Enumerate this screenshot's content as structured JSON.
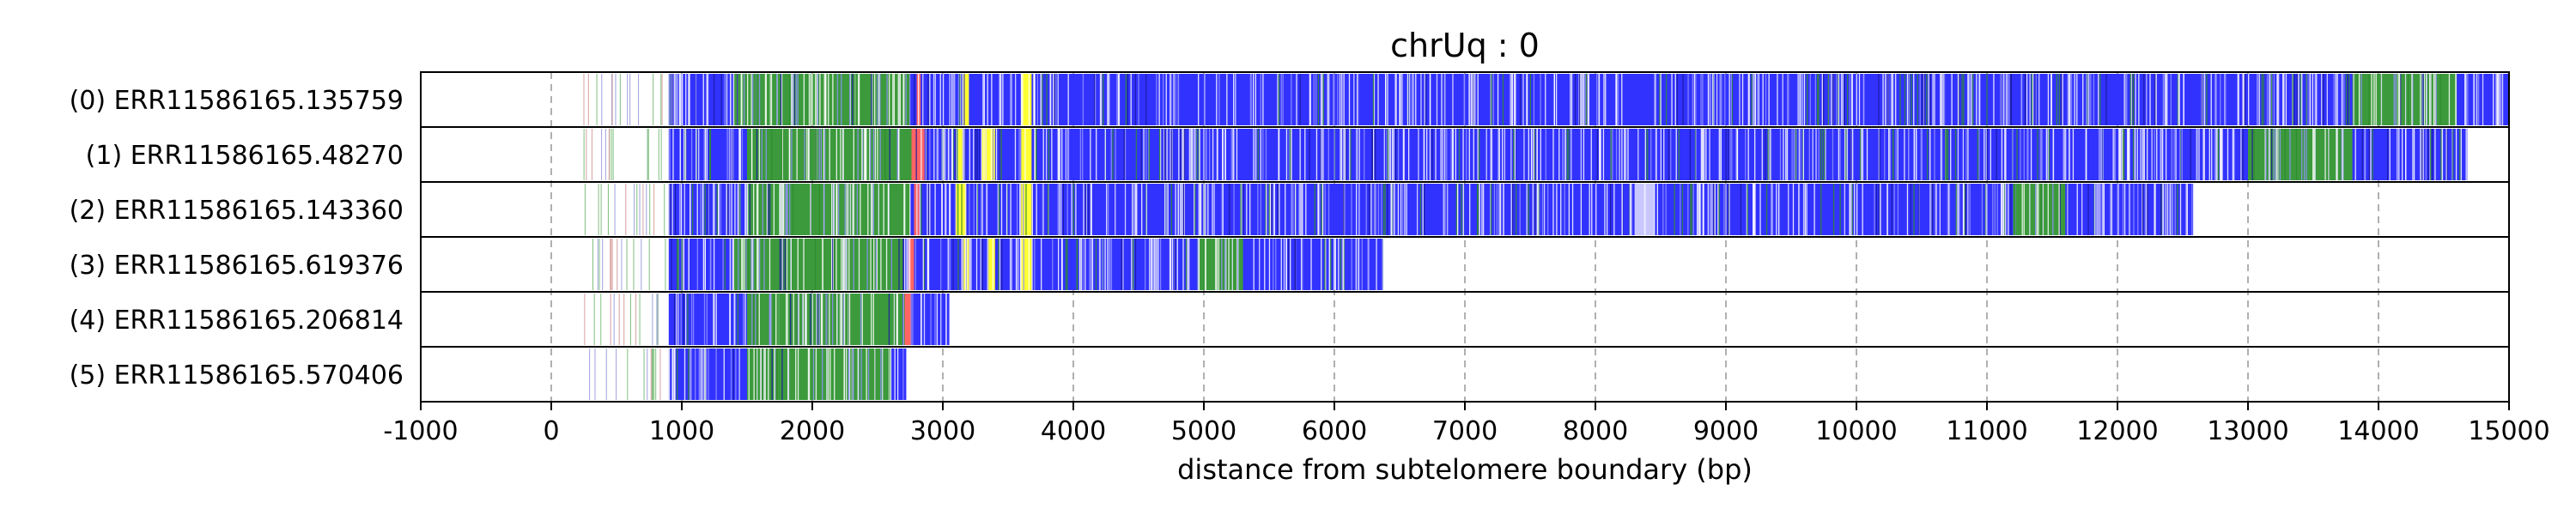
{
  "chart_data": {
    "type": "bar",
    "title": "chrUq : 0",
    "xlabel": "distance from subtelomere boundary (bp)",
    "xlim": [
      -1000,
      15000
    ],
    "xticks": [
      "-1000",
      "0",
      "1000",
      "2000",
      "3000",
      "4000",
      "5000",
      "6000",
      "7000",
      "8000",
      "9000",
      "10000",
      "11000",
      "12000",
      "13000",
      "14000",
      "15000"
    ],
    "grid": "vertical dashed",
    "colors": {
      "blue": "#3232ff",
      "green": "#3c9a3c",
      "yellow": "#ffff32",
      "red": "#ff6464",
      "light_blue": "#c8c8ff"
    },
    "reads": [
      {
        "label": "(0) ERR11586165.135759",
        "read_end": 15000,
        "segments": [
          {
            "start": 900,
            "end": 15000,
            "color": "blue"
          },
          {
            "start": 1400,
            "end": 2750,
            "color": "green"
          },
          {
            "start": 2800,
            "end": 2830,
            "color": "red"
          },
          {
            "start": 3150,
            "end": 3200,
            "color": "yellow"
          },
          {
            "start": 3600,
            "end": 3680,
            "color": "yellow"
          },
          {
            "start": 13800,
            "end": 14600,
            "color": "green"
          }
        ]
      },
      {
        "label": "(1) ERR11586165.48270",
        "read_end": 14680,
        "segments": [
          {
            "start": 900,
            "end": 14680,
            "color": "blue"
          },
          {
            "start": 1500,
            "end": 2780,
            "color": "green"
          },
          {
            "start": 2760,
            "end": 2860,
            "color": "red"
          },
          {
            "start": 3100,
            "end": 3150,
            "color": "yellow"
          },
          {
            "start": 3300,
            "end": 3400,
            "color": "yellow"
          },
          {
            "start": 3600,
            "end": 3680,
            "color": "yellow"
          },
          {
            "start": 13000,
            "end": 13800,
            "color": "green"
          }
        ]
      },
      {
        "label": "(2) ERR11586165.143360",
        "read_end": 12580,
        "segments": [
          {
            "start": 900,
            "end": 12580,
            "color": "blue"
          },
          {
            "start": 1500,
            "end": 2750,
            "color": "green"
          },
          {
            "start": 2780,
            "end": 2820,
            "color": "red"
          },
          {
            "start": 3100,
            "end": 3180,
            "color": "yellow"
          },
          {
            "start": 3600,
            "end": 3680,
            "color": "yellow"
          },
          {
            "start": 8300,
            "end": 8450,
            "color": "light_blue"
          },
          {
            "start": 11200,
            "end": 11600,
            "color": "green"
          }
        ]
      },
      {
        "label": "(3) ERR11586165.619376",
        "read_end": 6380,
        "segments": [
          {
            "start": 900,
            "end": 6380,
            "color": "blue"
          },
          {
            "start": 1400,
            "end": 2700,
            "color": "green"
          },
          {
            "start": 2740,
            "end": 2780,
            "color": "red"
          },
          {
            "start": 3150,
            "end": 3200,
            "color": "yellow"
          },
          {
            "start": 3350,
            "end": 3400,
            "color": "yellow"
          },
          {
            "start": 3600,
            "end": 3680,
            "color": "yellow"
          },
          {
            "start": 4950,
            "end": 5300,
            "color": "green"
          }
        ]
      },
      {
        "label": "(4) ERR11586165.206814",
        "read_end": 3050,
        "segments": [
          {
            "start": 900,
            "end": 3050,
            "color": "blue"
          },
          {
            "start": 1500,
            "end": 2700,
            "color": "green"
          },
          {
            "start": 2700,
            "end": 2760,
            "color": "red"
          }
        ]
      },
      {
        "label": "(5) ERR11586165.570406",
        "read_end": 2720,
        "segments": [
          {
            "start": 900,
            "end": 2720,
            "color": "blue"
          },
          {
            "start": 1500,
            "end": 2600,
            "color": "green"
          }
        ]
      }
    ]
  }
}
